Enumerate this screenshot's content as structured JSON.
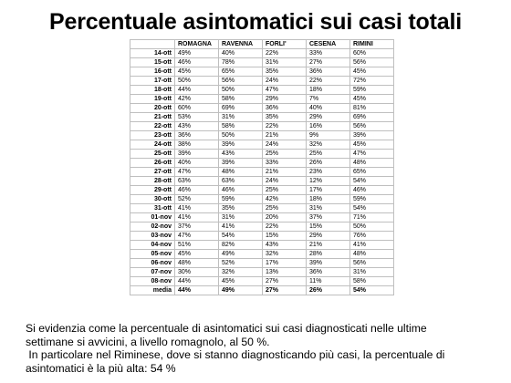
{
  "title": "Percentuale asintomatici sui casi totali",
  "table": {
    "headers": [
      "ROMAGNA",
      "RAVENNA",
      "FORLI'",
      "CESENA",
      "RIMINI"
    ],
    "rows": [
      {
        "date": "14-ott",
        "values": [
          "49%",
          "40%",
          "22%",
          "33%",
          "60%"
        ]
      },
      {
        "date": "15-ott",
        "values": [
          "46%",
          "78%",
          "31%",
          "27%",
          "56%"
        ]
      },
      {
        "date": "16-ott",
        "values": [
          "45%",
          "65%",
          "35%",
          "36%",
          "45%"
        ]
      },
      {
        "date": "17-ott",
        "values": [
          "50%",
          "56%",
          "24%",
          "22%",
          "72%"
        ]
      },
      {
        "date": "18-ott",
        "values": [
          "44%",
          "50%",
          "47%",
          "18%",
          "59%"
        ]
      },
      {
        "date": "19-ott",
        "values": [
          "42%",
          "58%",
          "29%",
          "7%",
          "45%"
        ]
      },
      {
        "date": "20-ott",
        "values": [
          "60%",
          "69%",
          "36%",
          "40%",
          "81%"
        ]
      },
      {
        "date": "21-ott",
        "values": [
          "53%",
          "31%",
          "35%",
          "29%",
          "69%"
        ]
      },
      {
        "date": "22-ott",
        "values": [
          "43%",
          "58%",
          "22%",
          "16%",
          "56%"
        ]
      },
      {
        "date": "23-ott",
        "values": [
          "36%",
          "50%",
          "21%",
          "9%",
          "39%"
        ]
      },
      {
        "date": "24-ott",
        "values": [
          "38%",
          "39%",
          "24%",
          "32%",
          "45%"
        ]
      },
      {
        "date": "25-ott",
        "values": [
          "39%",
          "43%",
          "25%",
          "25%",
          "47%"
        ]
      },
      {
        "date": "26-ott",
        "values": [
          "40%",
          "39%",
          "33%",
          "26%",
          "48%"
        ]
      },
      {
        "date": "27-ott",
        "values": [
          "47%",
          "48%",
          "21%",
          "23%",
          "65%"
        ]
      },
      {
        "date": "28-ott",
        "values": [
          "63%",
          "63%",
          "24%",
          "12%",
          "54%"
        ]
      },
      {
        "date": "29-ott",
        "values": [
          "46%",
          "46%",
          "25%",
          "17%",
          "46%"
        ]
      },
      {
        "date": "30-ott",
        "values": [
          "52%",
          "59%",
          "42%",
          "18%",
          "59%"
        ]
      },
      {
        "date": "31-ott",
        "values": [
          "41%",
          "35%",
          "25%",
          "31%",
          "54%"
        ]
      },
      {
        "date": "01-nov",
        "values": [
          "41%",
          "31%",
          "20%",
          "37%",
          "71%"
        ]
      },
      {
        "date": "02-nov",
        "values": [
          "37%",
          "41%",
          "22%",
          "15%",
          "50%"
        ]
      },
      {
        "date": "03-nov",
        "values": [
          "47%",
          "54%",
          "15%",
          "29%",
          "76%"
        ]
      },
      {
        "date": "04-nov",
        "values": [
          "51%",
          "82%",
          "43%",
          "21%",
          "41%"
        ]
      },
      {
        "date": "05-nov",
        "values": [
          "45%",
          "49%",
          "32%",
          "28%",
          "48%"
        ]
      },
      {
        "date": "06-nov",
        "values": [
          "48%",
          "52%",
          "17%",
          "39%",
          "56%"
        ]
      },
      {
        "date": "07-nov",
        "values": [
          "30%",
          "32%",
          "13%",
          "36%",
          "31%"
        ]
      },
      {
        "date": "08-nov",
        "values": [
          "44%",
          "45%",
          "27%",
          "11%",
          "58%"
        ]
      }
    ],
    "average": {
      "label": "media",
      "values": [
        "44%",
        "49%",
        "27%",
        "26%",
        "54%"
      ]
    }
  },
  "text": {
    "line1": "Si evidenzia come la percentuale di asintomatici sui casi diagnosticati nelle ultime",
    "line2": "settimane si avvicini, a livello romagnolo, al 50 %.",
    "line3": " In particolare nel Riminese, dove si stanno diagnosticando più casi, la percentuale di",
    "line4": "asintomatici è la più alta: 54 %"
  }
}
